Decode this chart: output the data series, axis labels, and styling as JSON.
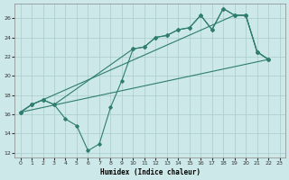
{
  "xlabel": "Humidex (Indice chaleur)",
  "ylabel": "",
  "xlim": [
    -0.5,
    23.5
  ],
  "ylim": [
    11.5,
    27.5
  ],
  "xticks": [
    0,
    1,
    2,
    3,
    4,
    5,
    6,
    7,
    8,
    9,
    10,
    11,
    12,
    13,
    14,
    15,
    16,
    17,
    18,
    19,
    20,
    21,
    22,
    23
  ],
  "yticks": [
    12,
    14,
    16,
    18,
    20,
    22,
    24,
    26
  ],
  "bg_color": "#cce8e8",
  "grid_color": "#aacccc",
  "line_color": "#2e7d6e",
  "lines": [
    {
      "x": [
        0,
        1,
        2,
        3,
        4,
        5,
        6,
        7,
        8,
        9,
        10,
        11,
        12,
        13,
        14,
        15,
        16,
        17,
        18,
        19,
        20,
        21,
        22
      ],
      "y": [
        16.2,
        17.0,
        17.5,
        17.0,
        15.5,
        14.8,
        12.2,
        12.9,
        16.7,
        19.5,
        22.8,
        23.0,
        24.0,
        24.2,
        24.8,
        25.0,
        26.3,
        24.8,
        27.0,
        26.3,
        26.3,
        22.5,
        21.7
      ],
      "markers": true
    },
    {
      "x": [
        0,
        1,
        2,
        19,
        20,
        21,
        22
      ],
      "y": [
        16.2,
        17.0,
        17.5,
        26.3,
        26.3,
        22.5,
        21.7
      ],
      "markers": true
    },
    {
      "x": [
        0,
        22
      ],
      "y": [
        16.2,
        21.7
      ],
      "markers": false
    },
    {
      "x": [
        0,
        1,
        2,
        3,
        10,
        11,
        12,
        13,
        14,
        15,
        16,
        17,
        18,
        19,
        20,
        21,
        22
      ],
      "y": [
        16.2,
        17.0,
        17.5,
        17.0,
        22.8,
        23.0,
        24.0,
        24.2,
        24.8,
        25.0,
        26.3,
        24.8,
        27.0,
        26.3,
        26.3,
        22.5,
        21.7
      ],
      "markers": true
    }
  ]
}
